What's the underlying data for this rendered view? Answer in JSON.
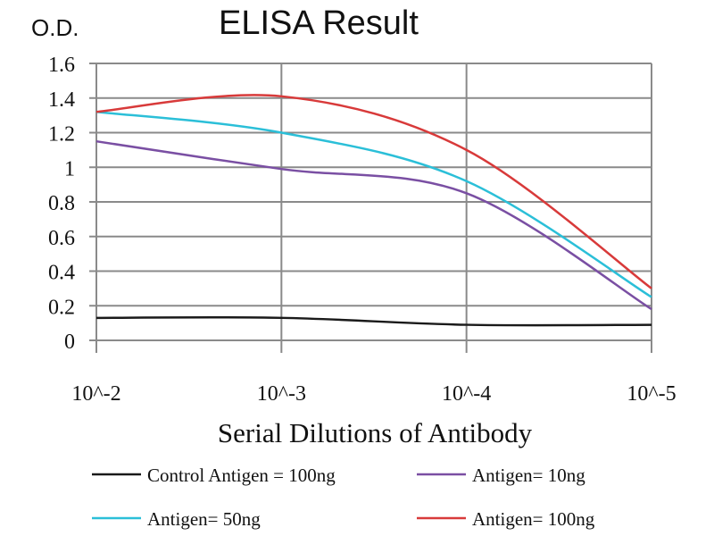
{
  "chart_data": {
    "type": "line",
    "title": "ELISA Result",
    "ylabel": "O.D.",
    "xlabel": "Serial Dilutions of Antibody",
    "categories": [
      "10^-2",
      "10^-3",
      "10^-4",
      "10^-5"
    ],
    "ylim": [
      0,
      1.6
    ],
    "yticks": [
      "0",
      "0.2",
      "0.4",
      "0.6",
      "0.8",
      "1",
      "1.2",
      "1.4",
      "1.6"
    ],
    "grid": true,
    "legend_position": "bottom",
    "series": [
      {
        "name": "Control Antigen = 100ng",
        "color": "#1a1a1a",
        "values": [
          0.13,
          0.13,
          0.09,
          0.09
        ]
      },
      {
        "name": "Antigen= 10ng",
        "color": "#7a4fa3",
        "values": [
          1.15,
          0.99,
          0.85,
          0.18
        ]
      },
      {
        "name": "Antigen= 50ng",
        "color": "#2bbfd8",
        "values": [
          1.32,
          1.2,
          0.92,
          0.25
        ]
      },
      {
        "name": "Antigen= 100ng",
        "color": "#d83a3a",
        "values": [
          1.32,
          1.41,
          1.1,
          0.3
        ]
      }
    ]
  }
}
